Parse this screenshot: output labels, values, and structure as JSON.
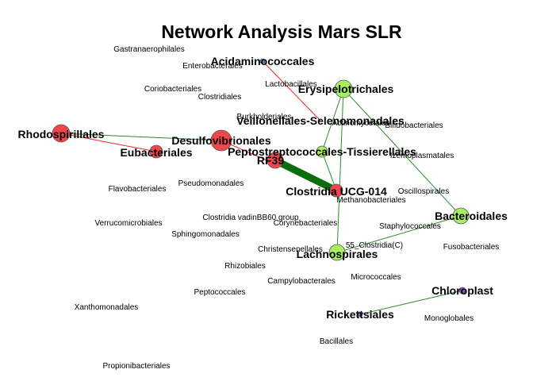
{
  "title": "Network Analysis Mars SLR",
  "colors": {
    "red_node": "#f0474d",
    "green_node": "#a6f060",
    "blue_node": "#5aa9d6",
    "purple_node": "#8a55d6",
    "neg_edge": "#e8262b",
    "pos_edge": "#2d8a2d",
    "strong_edge": "#0a6e0a"
  },
  "nodes": [
    {
      "id": "Acidaminococcales",
      "label": "Acidaminococcales",
      "color": "blue_node",
      "prominent": true
    },
    {
      "id": "Erysipelotrichales",
      "label": "Erysipelotrichales",
      "color": "green_node",
      "prominent": true
    },
    {
      "id": "Veillonellales-Selenomonadales",
      "label": "Veillonellales-Selenomonadales",
      "color": "none",
      "prominent": true
    },
    {
      "id": "Rhodospirillales",
      "label": "Rhodospirillales",
      "color": "red_node",
      "prominent": true
    },
    {
      "id": "Desulfovibrionales",
      "label": "Desulfovibrionales",
      "color": "red_node",
      "prominent": true
    },
    {
      "id": "Eubacteriales",
      "label": "Eubacteriales",
      "color": "red_node",
      "prominent": true
    },
    {
      "id": "Peptostreptococcales-Tissierellales",
      "label": "Peptostreptococcales-Tissierellales",
      "color": "green_node",
      "prominent": true
    },
    {
      "id": "RF39",
      "label": "RF39",
      "color": "red_node",
      "prominent": true
    },
    {
      "id": "Clostridia UCG-014",
      "label": "Clostridia UCG-014",
      "color": "red_node",
      "prominent": true
    },
    {
      "id": "Bacteroidales",
      "label": "Bacteroidales",
      "color": "green_node",
      "prominent": true
    },
    {
      "id": "Lachnospirales",
      "label": "Lachnospirales",
      "color": "green_node",
      "prominent": true
    },
    {
      "id": "Chloroplast",
      "label": "Chloroplast",
      "color": "purple_node",
      "prominent": true
    },
    {
      "id": "Rickettsiales",
      "label": "Rickettsiales",
      "color": "purple_node",
      "prominent": true
    },
    {
      "id": "Gastranaerophilales",
      "label": "Gastranaerophilales",
      "color": "none",
      "prominent": false
    },
    {
      "id": "Enterobacterales",
      "label": "Enterobacterales",
      "color": "none",
      "prominent": false
    },
    {
      "id": "Lactobacillales",
      "label": "Lactobacillales",
      "color": "none",
      "prominent": false
    },
    {
      "id": "Coriobacteriales",
      "label": "Coriobacteriales",
      "color": "none",
      "prominent": false
    },
    {
      "id": "Clostridiales",
      "label": "Clostridiales",
      "color": "none",
      "prominent": false
    },
    {
      "id": "Burkholderiales",
      "label": "Burkholderiales",
      "color": "none",
      "prominent": false
    },
    {
      "id": "Actinomycetales",
      "label": "Actinomycetales",
      "color": "none",
      "prominent": false
    },
    {
      "id": "Bifidobacteriales",
      "label": "Bifidobacteriales",
      "color": "none",
      "prominent": false
    },
    {
      "id": "Izemoplasmatales",
      "label": "Izemoplasmatales",
      "color": "none",
      "prominent": false
    },
    {
      "id": "Flavobacteriales",
      "label": "Flavobacteriales",
      "color": "none",
      "prominent": false
    },
    {
      "id": "Pseudomonadales",
      "label": "Pseudomonadales",
      "color": "none",
      "prominent": false
    },
    {
      "id": "Oscillospirales",
      "label": "Oscillospirales",
      "color": "none",
      "prominent": false
    },
    {
      "id": "Methanobacteriales",
      "label": "Methanobacteriales",
      "color": "none",
      "prominent": false
    },
    {
      "id": "Verrucomicrobiales",
      "label": "Verrucomicrobiales",
      "color": "none",
      "prominent": false
    },
    {
      "id": "Clostridia vadinBB60 group",
      "label": "Clostridia vadinBB60 group",
      "color": "none",
      "prominent": false
    },
    {
      "id": "Corynebacteriales",
      "label": "Corynebacteriales",
      "color": "none",
      "prominent": false
    },
    {
      "id": "Sphingomonadales",
      "label": "Sphingomonadales",
      "color": "none",
      "prominent": false
    },
    {
      "id": "Staphylococcales",
      "label": "Staphylococcales",
      "color": "none",
      "prominent": false
    },
    {
      "id": "Christensenellales",
      "label": "Christensenellales",
      "color": "none",
      "prominent": false
    },
    {
      "id": "55_Clostridia(C)",
      "label": "55_Clostridia(C)",
      "color": "none",
      "prominent": false
    },
    {
      "id": "Fusobacteriales",
      "label": "Fusobacteriales",
      "color": "none",
      "prominent": false
    },
    {
      "id": "Rhizobiales",
      "label": "Rhizobiales",
      "color": "none",
      "prominent": false
    },
    {
      "id": "Campylobacterales",
      "label": "Campylobacterales",
      "color": "none",
      "prominent": false
    },
    {
      "id": "Micrococcales",
      "label": "Micrococcales",
      "color": "none",
      "prominent": false
    },
    {
      "id": "Peptococcales",
      "label": "Peptococcales",
      "color": "none",
      "prominent": false
    },
    {
      "id": "Xanthomonadales",
      "label": "Xanthomonadales",
      "color": "none",
      "prominent": false
    },
    {
      "id": "Monoglobales",
      "label": "Monoglobales",
      "color": "none",
      "prominent": false
    },
    {
      "id": "Bacillales",
      "label": "Bacillales",
      "color": "none",
      "prominent": false
    },
    {
      "id": "Propionibacteriales",
      "label": "Propionibacteriales",
      "color": "none",
      "prominent": false
    }
  ],
  "edges": [
    {
      "source": "Acidaminococcales",
      "target": "Veillonellales-Selenomonadales",
      "sign": "negative",
      "weight": 1
    },
    {
      "source": "Rhodospirillales",
      "target": "Eubacteriales",
      "sign": "negative",
      "weight": 1
    },
    {
      "source": "Rhodospirillales",
      "target": "Desulfovibrionales",
      "sign": "positive",
      "weight": 1
    },
    {
      "source": "Desulfovibrionales",
      "target": "Clostridia UCG-014",
      "sign": "negative",
      "weight": 1
    },
    {
      "source": "RF39",
      "target": "Clostridia UCG-014",
      "sign": "positive",
      "weight": 10
    },
    {
      "source": "Erysipelotrichales",
      "target": "Peptostreptococcales-Tissierellales",
      "sign": "positive",
      "weight": 1
    },
    {
      "source": "Erysipelotrichales",
      "target": "Bacteroidales",
      "sign": "positive",
      "weight": 1
    },
    {
      "source": "Erysipelotrichales",
      "target": "Lachnospirales",
      "sign": "positive",
      "weight": 1
    },
    {
      "source": "Peptostreptococcales-Tissierellales",
      "target": "Clostridia UCG-014",
      "sign": "positive",
      "weight": 1
    },
    {
      "source": "Bacteroidales",
      "target": "Lachnospirales",
      "sign": "positive",
      "weight": 1
    },
    {
      "source": "Chloroplast",
      "target": "Rickettsiales",
      "sign": "positive",
      "weight": 1
    }
  ]
}
